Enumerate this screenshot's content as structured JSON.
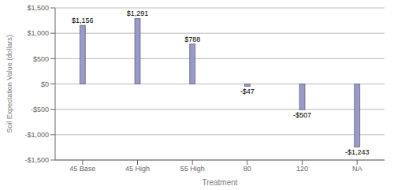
{
  "chart_data": {
    "type": "bar",
    "xlabel": "Treatment",
    "ylabel": "Soil Expectation Value (dollars)",
    "categories": [
      "45 Base",
      "45 High",
      "55 High",
      "80",
      "120",
      "NA"
    ],
    "values": [
      1156,
      1291,
      788,
      -47,
      -507,
      -1243
    ],
    "value_labels": [
      "$1,156",
      "$1,291",
      "$788",
      "-$47",
      "-$507",
      "-$1,243"
    ],
    "color": "#9999cc",
    "ylim": [
      -1500,
      1500
    ],
    "yticks": [
      {
        "value": -1500,
        "label": "-$1,500"
      },
      {
        "value": -1000,
        "label": "-$1,000"
      },
      {
        "value": -500,
        "label": "-$500"
      },
      {
        "value": 0,
        "label": "$0"
      },
      {
        "value": 500,
        "label": "$500"
      },
      {
        "value": 1000,
        "label": "$1,000"
      },
      {
        "value": 1500,
        "label": "$1,500"
      }
    ],
    "grid": true,
    "data_labels": true
  }
}
